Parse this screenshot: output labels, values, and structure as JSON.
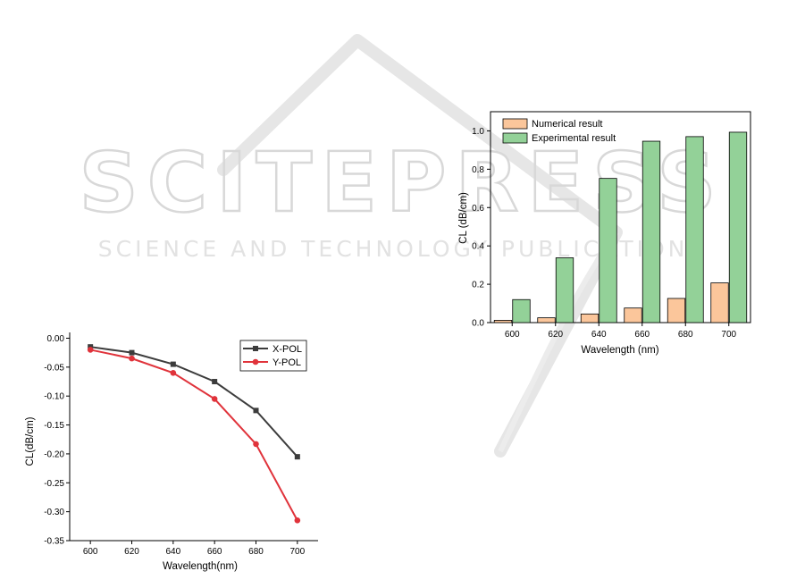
{
  "watermark": {
    "brand": "SCITEPRESS",
    "tagline": "SCIENCE AND TECHNOLOGY PUBLICATIONS"
  },
  "chart_data": [
    {
      "type": "bar",
      "categories": [
        "600",
        "620",
        "640",
        "660",
        "680",
        "700"
      ],
      "series": [
        {
          "name": "Numerical result",
          "values": [
            0.012,
            0.025,
            0.045,
            0.076,
            0.126,
            0.207
          ],
          "color": "#fbc69b"
        },
        {
          "name": "Experimental result",
          "values": [
            0.12,
            0.338,
            0.752,
            0.946,
            0.97,
            0.993
          ],
          "color": "#93d198"
        }
      ],
      "xlabel": "Wavelength (nm)",
      "ylabel": "CL (dB/cm)",
      "ylim": [
        0,
        1.1
      ],
      "yticks": [
        "0.0",
        "0.2",
        "0.4",
        "0.6",
        "0.8",
        "1.0"
      ],
      "ytick_values": [
        0,
        0.2,
        0.4,
        0.6,
        0.8,
        1.0
      ],
      "legend": "top-left",
      "grid": false
    },
    {
      "type": "line",
      "x": [
        600,
        620,
        640,
        660,
        680,
        700
      ],
      "series": [
        {
          "name": "X-POL",
          "values": [
            -0.015,
            -0.025,
            -0.045,
            -0.075,
            -0.125,
            -0.205
          ],
          "color": "#3c3c3c",
          "marker": "square"
        },
        {
          "name": "Y-POL",
          "values": [
            -0.02,
            -0.035,
            -0.06,
            -0.105,
            -0.183,
            -0.315
          ],
          "color": "#e0333b",
          "marker": "circle"
        }
      ],
      "xlabel": "Wavelength(nm)",
      "ylabel": "CL(dB/cm)",
      "xlim": [
        590,
        710
      ],
      "ylim": [
        -0.35,
        0.01
      ],
      "xticks": [
        "600",
        "620",
        "640",
        "660",
        "680",
        "700"
      ],
      "xtick_values": [
        600,
        620,
        640,
        660,
        680,
        700
      ],
      "yticks": [
        "0.00",
        "-0.05",
        "-0.10",
        "-0.15",
        "-0.20",
        "-0.25",
        "-0.30",
        "-0.35"
      ],
      "ytick_values": [
        0,
        -0.05,
        -0.1,
        -0.15,
        -0.2,
        -0.25,
        -0.3,
        -0.35
      ],
      "legend": "top-right",
      "grid": false
    }
  ]
}
